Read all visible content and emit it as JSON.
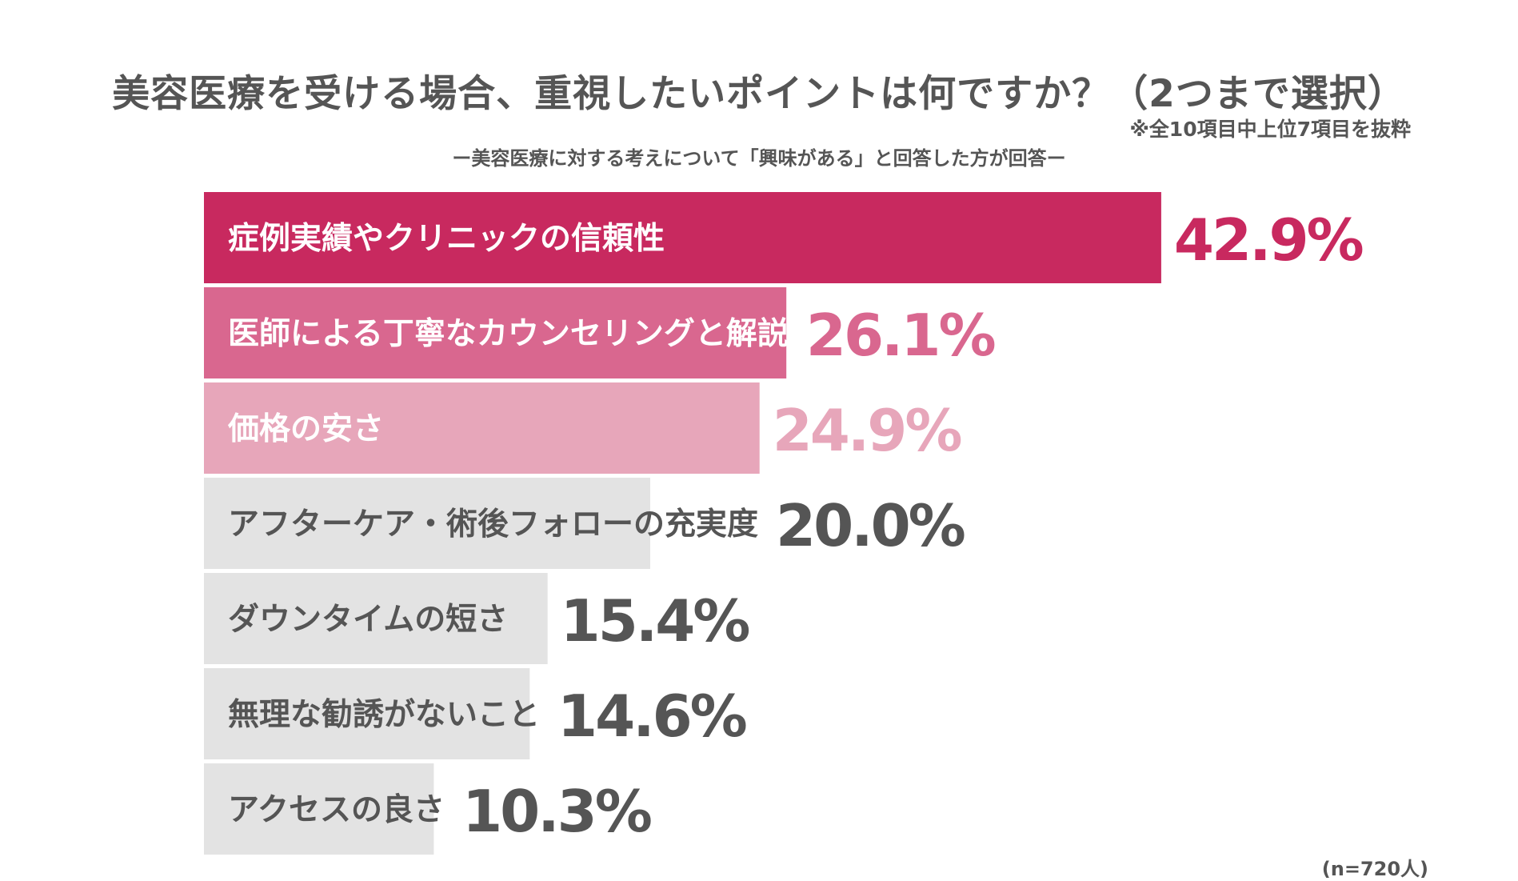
{
  "title": "美容医療を受ける場合、重視したいポイントは何ですか？（2つまで選択）",
  "note": "※全10項目中上位7項目を抜粋",
  "subtitle": "ー美容医療に対する考えについて「興味がある」と回答した方が回答ー",
  "sample_size": "(n=720人)",
  "chart_data": {
    "type": "bar",
    "orientation": "horizontal",
    "unit": "%",
    "categories": [
      "症例実績やクリニックの信頼性",
      "医師による丁寧なカウンセリングと解説",
      "価格の安さ",
      "アフターケア・術後フォローの充実度",
      "ダウンタイムの短さ",
      "無理な勧誘がないこと",
      "アクセスの良さ"
    ],
    "values": [
      42.9,
      26.1,
      24.9,
      20.0,
      15.4,
      14.6,
      10.3
    ],
    "value_labels": [
      "42.9%",
      "26.1%",
      "24.9%",
      "20.0%",
      "15.4%",
      "14.6%",
      "10.3%"
    ],
    "bar_colors": [
      "#c8295f",
      "#d9678f",
      "#e7a6ba",
      "#e3e3e3",
      "#e3e3e3",
      "#e3e3e3",
      "#e3e3e3"
    ],
    "label_colors": [
      "#ffffff",
      "#ffffff",
      "#ffffff",
      "#555555",
      "#555555",
      "#555555",
      "#555555"
    ],
    "value_colors": [
      "#c8295f",
      "#d9678f",
      "#e7a6ba",
      "#555555",
      "#555555",
      "#555555",
      "#555555"
    ],
    "grid": false,
    "legend": "none"
  }
}
